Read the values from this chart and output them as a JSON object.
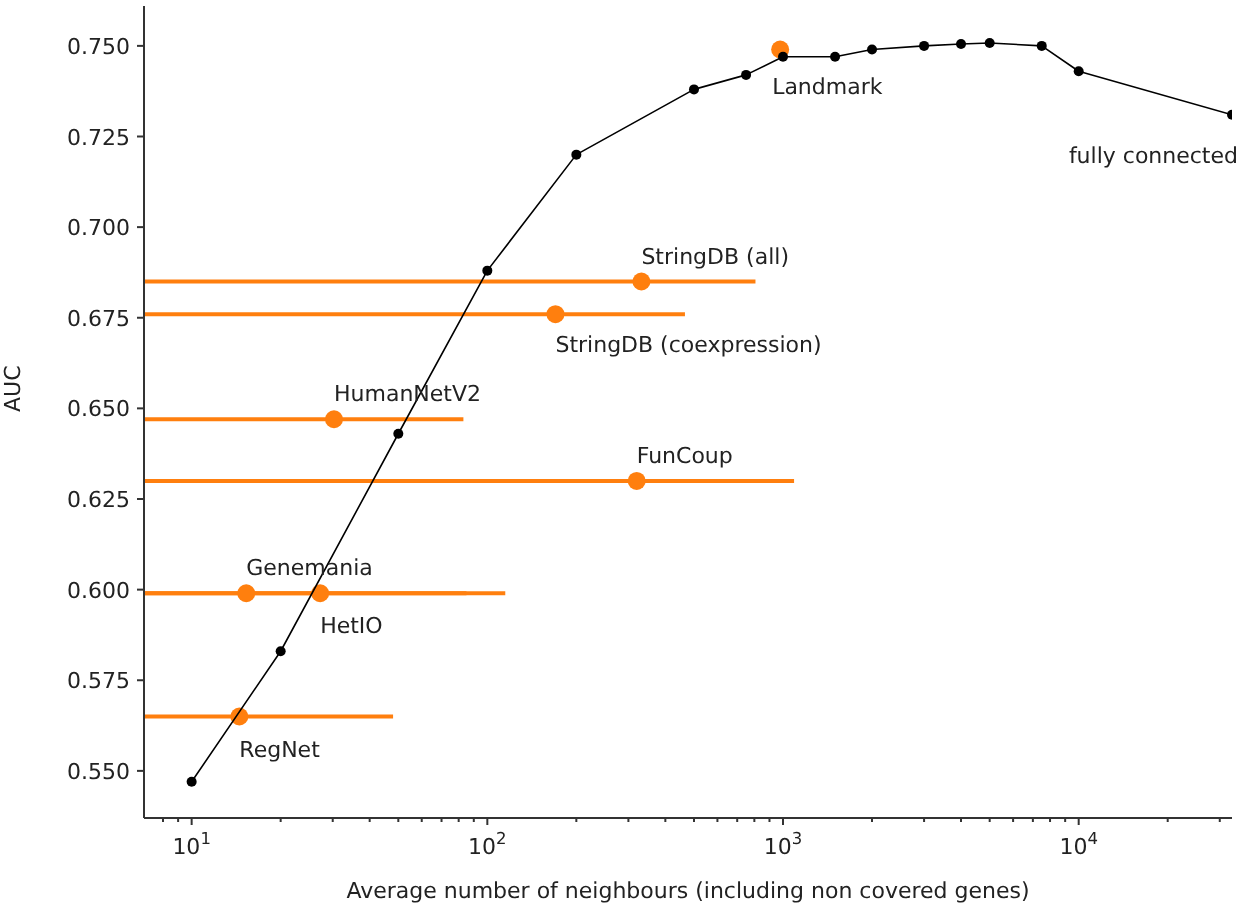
{
  "chart_data": {
    "type": "scatter",
    "xlabel": "Average number of neighbours (including non covered genes)",
    "ylabel": "AUC",
    "log": "x",
    "xlim": [
      6.9,
      33000
    ],
    "ylim": [
      0.537,
      0.761
    ],
    "xticks": [
      {
        "value": 8,
        "label": null
      },
      {
        "value": 9,
        "label": null
      },
      {
        "value": 10,
        "label": "10$^{1}$"
      },
      {
        "value": 20,
        "label": null
      },
      {
        "value": 30,
        "label": null
      },
      {
        "value": 40,
        "label": null
      },
      {
        "value": 50,
        "label": null
      },
      {
        "value": 60,
        "label": null
      },
      {
        "value": 70,
        "label": null
      },
      {
        "value": 80,
        "label": null
      },
      {
        "value": 90,
        "label": null
      },
      {
        "value": 100,
        "label": "10$^{2}$"
      },
      {
        "value": 200,
        "label": null
      },
      {
        "value": 300,
        "label": null
      },
      {
        "value": 400,
        "label": null
      },
      {
        "value": 500,
        "label": null
      },
      {
        "value": 600,
        "label": null
      },
      {
        "value": 700,
        "label": null
      },
      {
        "value": 800,
        "label": null
      },
      {
        "value": 900,
        "label": null
      },
      {
        "value": 1000,
        "label": "10$^{3}$"
      },
      {
        "value": 2000,
        "label": null
      },
      {
        "value": 3000,
        "label": null
      },
      {
        "value": 4000,
        "label": null
      },
      {
        "value": 5000,
        "label": null
      },
      {
        "value": 6000,
        "label": null
      },
      {
        "value": 7000,
        "label": null
      },
      {
        "value": 8000,
        "label": null
      },
      {
        "value": 9000,
        "label": null
      },
      {
        "value": 10000,
        "label": "10$^{4}$"
      },
      {
        "value": 20000,
        "label": null
      },
      {
        "value": 30000,
        "label": null
      }
    ],
    "yticks": [
      {
        "value": 0.55,
        "label": "0.550"
      },
      {
        "value": 0.575,
        "label": "0.575"
      },
      {
        "value": 0.6,
        "label": "0.600"
      },
      {
        "value": 0.625,
        "label": "0.625"
      },
      {
        "value": 0.65,
        "label": "0.650"
      },
      {
        "value": 0.675,
        "label": "0.675"
      },
      {
        "value": 0.7,
        "label": "0.700"
      },
      {
        "value": 0.725,
        "label": "0.725"
      },
      {
        "value": 0.75,
        "label": "0.750"
      }
    ],
    "annotations": [
      {
        "text": "fully connected",
        "x": 33000,
        "y": 0.731
      }
    ],
    "series": [
      {
        "type": "line",
        "color": "#000000",
        "marker": "circle",
        "line_style": "solid",
        "x": [
          10,
          20,
          50,
          100,
          200,
          500,
          750,
          1000,
          1500,
          2000,
          3000,
          4000,
          5000,
          7500,
          10000,
          33000
        ],
        "values": [
          0.547,
          0.583,
          0.643,
          0.688,
          0.72,
          0.738,
          0.742,
          0.747,
          0.747,
          0.749,
          0.75,
          0.7505,
          0.7508,
          0.75,
          0.743,
          0.731
        ]
      },
      {
        "name": "Landmark",
        "color": "#ff7f0e",
        "marker": "circle",
        "x": [
          978
        ],
        "values": [
          0.749
        ]
      },
      {
        "name": "StringDB (all)",
        "color": "#ff7f0e",
        "marker": "circle",
        "x": [
          332
        ],
        "values": [
          0.685
        ],
        "xerrors": [
          [
            6.9,
            807
          ]
        ]
      },
      {
        "name": "StringDB (coexpression)",
        "color": "#ff7f0e",
        "marker": "circle",
        "x": [
          170
        ],
        "values": [
          0.676
        ],
        "xerrors": [
          [
            6.9,
            466
          ]
        ]
      },
      {
        "name": "HumanNetV2",
        "color": "#ff7f0e",
        "marker": "circle",
        "x": [
          30.3
        ],
        "values": [
          0.647
        ],
        "xerrors": [
          [
            6.9,
            83
          ]
        ]
      },
      {
        "name": "FunCoup",
        "color": "#ff7f0e",
        "marker": "circle",
        "x": [
          320
        ],
        "values": [
          0.63
        ],
        "xerrors": [
          [
            6.9,
            1090
          ]
        ]
      },
      {
        "name": "Genemania",
        "color": "#ff7f0e",
        "marker": "circle",
        "x": [
          15.3
        ],
        "values": [
          0.599
        ],
        "xerrors": [
          [
            6.9,
            85
          ]
        ]
      },
      {
        "name": "HetIO",
        "color": "#ff7f0e",
        "marker": "circle",
        "x": [
          27.2
        ],
        "values": [
          0.599
        ],
        "xerrors": [
          [
            6.9,
            115
          ]
        ]
      },
      {
        "name": "RegNet",
        "color": "#ff7f0e",
        "marker": "circle",
        "x": [
          14.5
        ],
        "values": [
          0.565
        ],
        "xerrors": [
          [
            6.9,
            48
          ]
        ]
      }
    ]
  }
}
